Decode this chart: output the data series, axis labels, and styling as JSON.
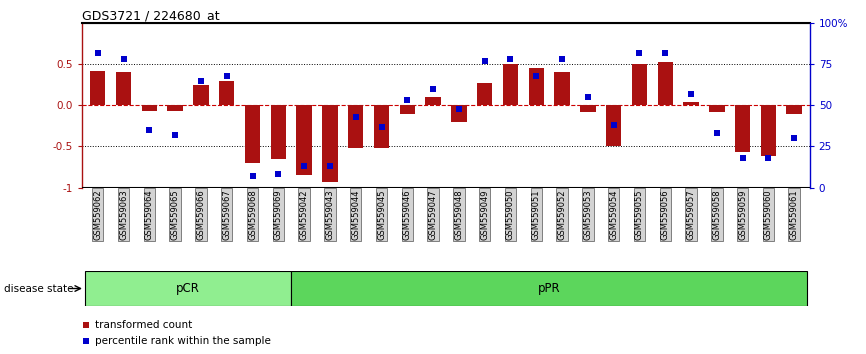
{
  "title": "GDS3721 / 224680_at",
  "samples": [
    "GSM559062",
    "GSM559063",
    "GSM559064",
    "GSM559065",
    "GSM559066",
    "GSM559067",
    "GSM559068",
    "GSM559069",
    "GSM559042",
    "GSM559043",
    "GSM559044",
    "GSM559045",
    "GSM559046",
    "GSM559047",
    "GSM559048",
    "GSM559049",
    "GSM559050",
    "GSM559051",
    "GSM559052",
    "GSM559053",
    "GSM559054",
    "GSM559055",
    "GSM559056",
    "GSM559057",
    "GSM559058",
    "GSM559059",
    "GSM559060",
    "GSM559061"
  ],
  "red_bars": [
    0.42,
    0.4,
    -0.07,
    -0.07,
    0.25,
    0.3,
    -0.7,
    -0.65,
    -0.85,
    -0.93,
    -0.52,
    -0.52,
    -0.1,
    0.1,
    -0.2,
    0.27,
    0.5,
    0.45,
    0.4,
    -0.08,
    -0.5,
    0.5,
    0.53,
    0.04,
    -0.08,
    -0.57,
    -0.62,
    -0.1
  ],
  "blue_dots": [
    0.82,
    0.78,
    0.35,
    0.32,
    0.65,
    0.68,
    0.07,
    0.08,
    0.13,
    0.13,
    0.43,
    0.37,
    0.53,
    0.6,
    0.48,
    0.77,
    0.78,
    0.68,
    0.78,
    0.55,
    0.38,
    0.82,
    0.82,
    0.57,
    0.33,
    0.18,
    0.18,
    0.3
  ],
  "disease_groups": [
    {
      "label": "pCR",
      "start": 0,
      "end": 8,
      "color": "#90ee90"
    },
    {
      "label": "pPR",
      "start": 8,
      "end": 28,
      "color": "#5cd65c"
    }
  ],
  "ylim": [
    -1.0,
    1.0
  ],
  "yticks_left": [
    -1.0,
    -0.5,
    0.0,
    0.5
  ],
  "bar_color": "#aa1111",
  "dot_color": "#0000cc",
  "hline_color": "#cc0000",
  "grid_color": "#000000",
  "disease_state_label": "disease state",
  "legend_red": "transformed count",
  "legend_blue": "percentile rank within the sample"
}
